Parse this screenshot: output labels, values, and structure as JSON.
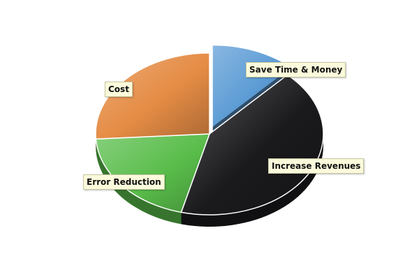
{
  "chart_data": {
    "type": "pie",
    "style": "3d",
    "title": "",
    "legend": "none",
    "slices": [
      {
        "label": "Save Time & Money",
        "value": 12,
        "color": "#5b9bd5",
        "exploded": true
      },
      {
        "label": "Increase Revenues",
        "value": 42,
        "color": "#1a1a1d",
        "exploded": false
      },
      {
        "label": "Error Reduction",
        "value": 20,
        "color": "#59bd4a",
        "exploded": false
      },
      {
        "label": "Cost",
        "value": 26,
        "color": "#e58c45",
        "exploded": false
      }
    ]
  }
}
